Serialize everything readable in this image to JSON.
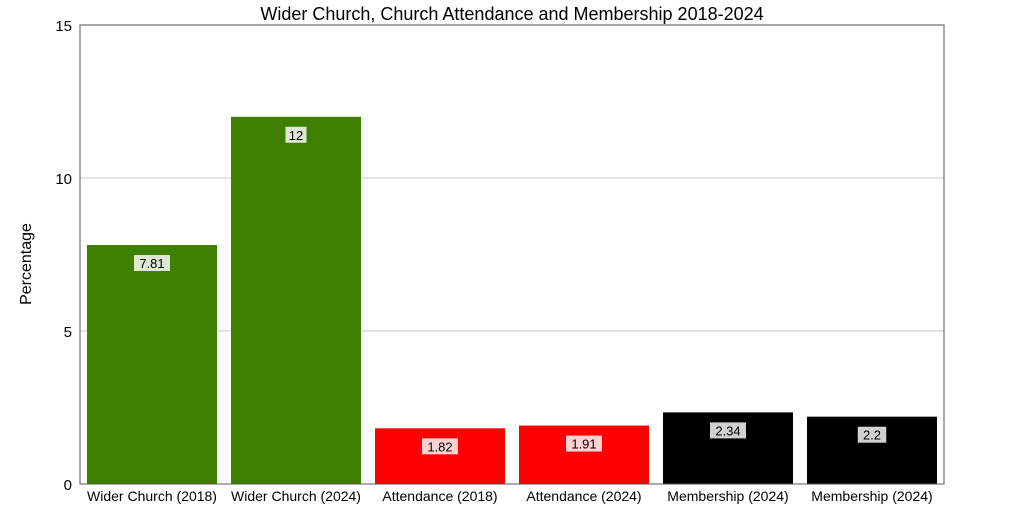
{
  "chart_data": {
    "type": "bar",
    "title": "Wider Church, Church Attendance and Membership 2018-2024",
    "xlabel": "",
    "ylabel": "Percentage",
    "ylim": [
      0,
      15
    ],
    "yticks": [
      0,
      5,
      10,
      15
    ],
    "grid": true,
    "legend": "none",
    "categories": [
      "Wider Church (2018)",
      "Wider Church (2024)",
      "Attendance (2018)",
      "Attendance (2024)",
      "Membership (2024)",
      "Membership (2024)"
    ],
    "values": [
      7.81,
      12,
      1.82,
      1.91,
      2.34,
      2.2
    ],
    "labels": [
      "7.81",
      "12",
      "1.82",
      "1.91",
      "2.34",
      "2.2"
    ],
    "colors": [
      "#3f7f00",
      "#3f7f00",
      "#ff0000",
      "#ff0000",
      "#000000",
      "#000000"
    ]
  }
}
